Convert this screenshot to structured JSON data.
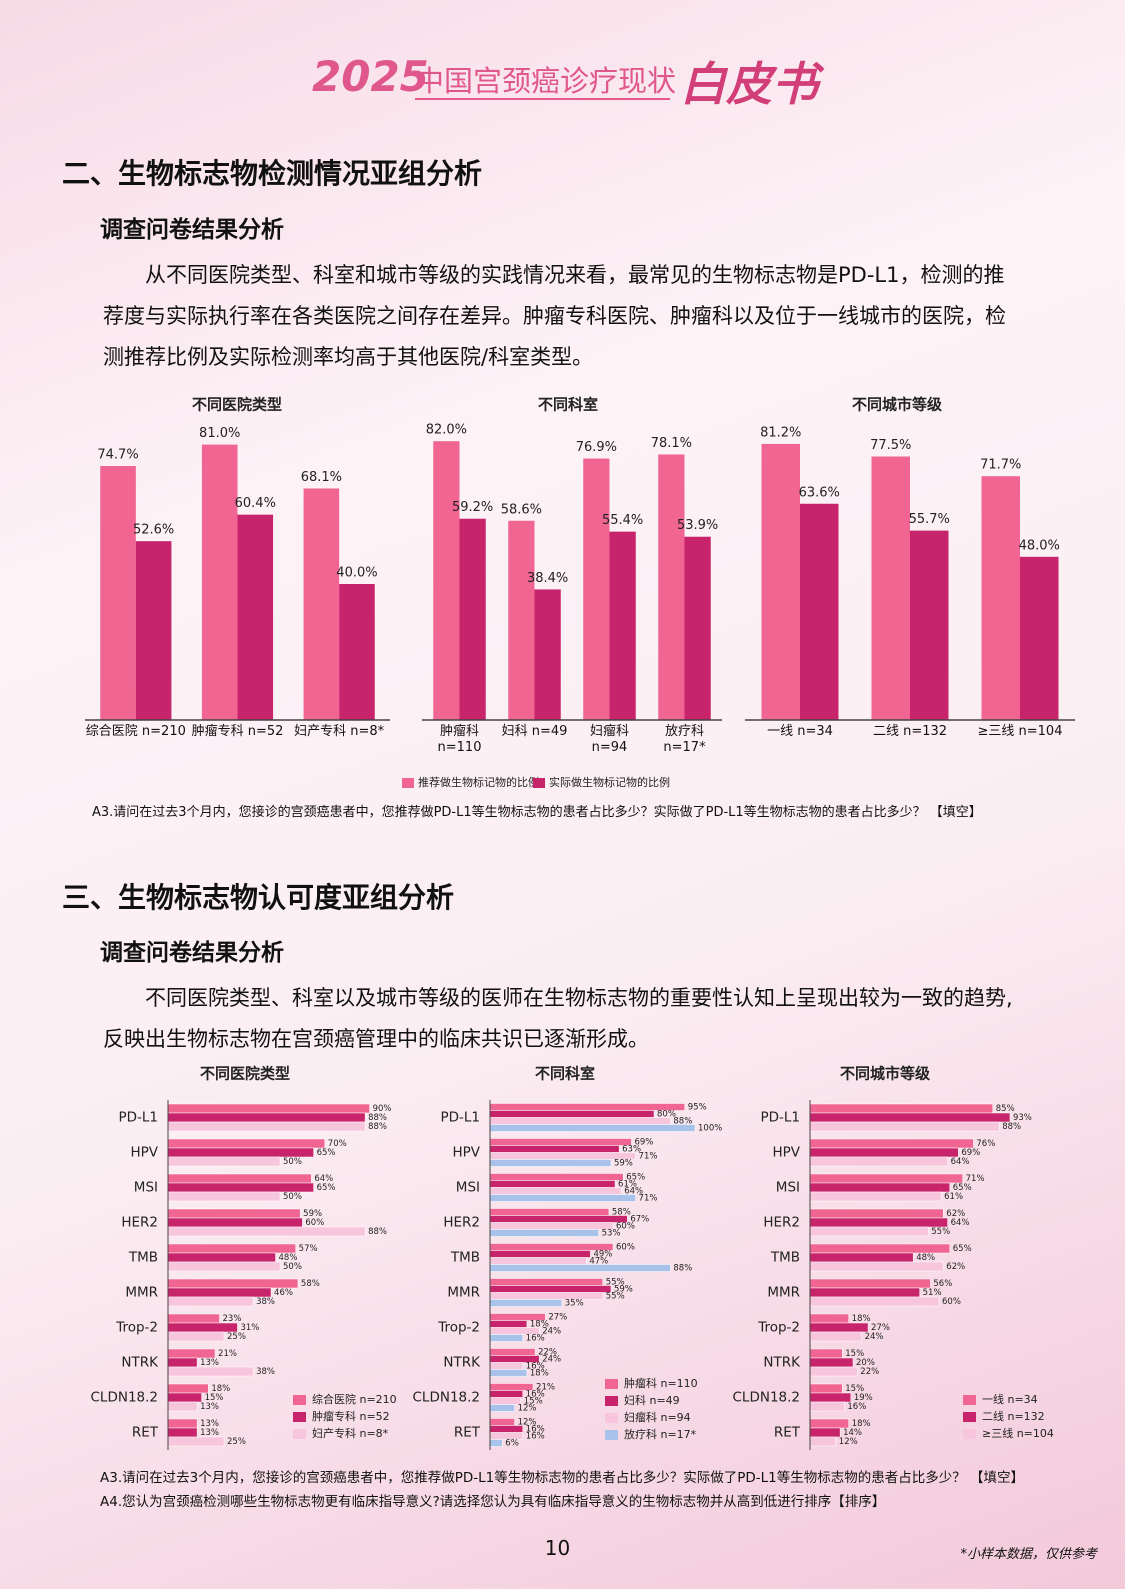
{
  "header": {
    "year": "2025",
    "title": "中国宫颈癌诊疗现状",
    "subtitle": "白皮书"
  },
  "sections": [
    {
      "title": "二、生物标志物检测情况亚组分析",
      "subtitle": "调查问卷结果分析",
      "paragraph": "从不同医院类型、科室和城市等级的实践情况来看，最常见的生物标志物是PD-L1，检测的推荐度与实际执行率在各类医院之间存在差异。肿瘤专科医院、肿瘤科以及位于一线城市的医院，检测推荐比例及实际检测率均高于其他医院/科室类型。",
      "note": "A3.请问在过去3个月内，您接诊的宫颈癌患者中，您推荐做PD-L1等生物标志物的患者占比多少？实际做了PD-L1等生物标志物的患者占比多少？ 【填空】"
    },
    {
      "title": "三、生物标志物认可度亚组分析",
      "subtitle": "调查问卷结果分析",
      "paragraph": "不同医院类型、科室以及城市等级的医师在生物标志物的重要性认知上呈现出较为一致的趋势,反映出生物标志物在宫颈癌管理中的临床共识已逐渐形成。",
      "notes": [
        "A3.请问在过去3个月内，您接诊的宫颈癌患者中，您推荐做PD-L1等生物标志物的患者占比多少？实际做了PD-L1等生物标志物的患者占比多少？ 【填空】",
        "A4.您认为宫颈癌检测哪些生物标志物更有临床指导意义?请选择您认为具有临床指导意义的生物标志物并从高到低进行排序【排序】"
      ]
    }
  ],
  "chart_data": [
    {
      "type": "bar",
      "title": "不同医院类型",
      "categories": [
        "综合医院 n=210",
        "肿瘤专科 n=52",
        "妇产专科 n=8*"
      ],
      "ylim": [
        0,
        90
      ],
      "series": [
        {
          "name": "推荐做生物标记物的比例",
          "color": "#f06592",
          "values": [
            74.7,
            81.0,
            68.1
          ],
          "value_labels": [
            "74.7%",
            "81.0%",
            "68.1%"
          ]
        },
        {
          "name": "实际做生物标记物的比例",
          "color": "#c8246c",
          "values": [
            52.6,
            60.4,
            40.0
          ],
          "value_labels": [
            "52.6%",
            "60.4%",
            "40.0%"
          ]
        }
      ]
    },
    {
      "type": "bar",
      "title": "不同科室",
      "categories": [
        "肿瘤科 n=110",
        "妇科 n=49",
        "妇瘤科 n=94",
        "放疗科 n=17*"
      ],
      "ylim": [
        0,
        90
      ],
      "series": [
        {
          "color": "#f06592",
          "values": [
            82.0,
            58.6,
            76.9,
            78.1
          ],
          "value_labels": [
            "82.0%",
            "58.6%",
            "76.9%",
            "78.1%"
          ]
        },
        {
          "color": "#c8246c",
          "values": [
            59.2,
            38.4,
            55.4,
            53.9
          ],
          "value_labels": [
            "59.2%",
            "38.4%",
            "55.4%",
            "53.9%"
          ]
        }
      ]
    },
    {
      "type": "bar",
      "title": "不同城市等级",
      "categories": [
        "一线 n=34",
        "二线 n=132",
        "≥三线 n=104"
      ],
      "ylim": [
        0,
        90
      ],
      "series": [
        {
          "color": "#f06592",
          "values": [
            81.2,
            77.5,
            71.7
          ],
          "value_labels": [
            "81.2%",
            "77.5%",
            "71.7%"
          ]
        },
        {
          "color": "#c8246c",
          "values": [
            63.6,
            55.7,
            48.0
          ],
          "value_labels": [
            "63.6%",
            "55.7%",
            "48.0%"
          ]
        }
      ]
    },
    {
      "type": "barh",
      "title": "不同医院类型",
      "categories": [
        "PD-L1",
        "HPV",
        "MSI",
        "HER2",
        "TMB",
        "MMR",
        "Trop-2",
        "NTRK",
        "CLDN18.2",
        "RET"
      ],
      "xlim": [
        0,
        100
      ],
      "series": [
        {
          "name": "综合医院 n=210",
          "color": "#f06592",
          "values": [
            90,
            70,
            64,
            59,
            57,
            58,
            23,
            21,
            18,
            13
          ],
          "value_labels": [
            "90%",
            "70%",
            "64%",
            "59%",
            "57%",
            "58%",
            "23%",
            "21%",
            "18%",
            "13%"
          ]
        },
        {
          "name": "肿瘤专科 n=52",
          "color": "#c8246c",
          "values": [
            88,
            65,
            65,
            60,
            48,
            46,
            31,
            13,
            15,
            13
          ],
          "value_labels": [
            "88%",
            "65%",
            "65%",
            "60%",
            "48%",
            "46%",
            "31%",
            "13%",
            "15%",
            "13%"
          ]
        },
        {
          "name": "妇产专科 n=8*",
          "color": "#f8c6dc",
          "values": [
            88,
            50,
            50,
            88,
            50,
            38,
            25,
            38,
            13,
            25
          ],
          "value_labels": [
            "88%",
            "50%",
            "50%",
            "88%",
            "50%",
            "38%",
            "25%",
            "38%",
            "13%",
            "25%"
          ]
        }
      ]
    },
    {
      "type": "barh",
      "title": "不同科室",
      "categories": [
        "PD-L1",
        "HPV",
        "MSI",
        "HER2",
        "TMB",
        "MMR",
        "Trop-2",
        "NTRK",
        "CLDN18.2",
        "RET"
      ],
      "xlim": [
        0,
        100
      ],
      "series": [
        {
          "name": "肿瘤科 n=110",
          "color": "#f06592",
          "values": [
            95,
            69,
            65,
            58,
            60,
            55,
            27,
            22,
            21,
            12
          ],
          "value_labels": [
            "95%",
            "69%",
            "65%",
            "58%",
            "60%",
            "55%",
            "27%",
            "22%",
            "21%",
            "12%"
          ]
        },
        {
          "name": "妇科 n=49",
          "color": "#c8246c",
          "values": [
            80,
            63,
            61,
            67,
            49,
            59,
            18,
            24,
            16,
            16
          ],
          "value_labels": [
            "80%",
            "63%",
            "61%",
            "67%",
            "49%",
            "59%",
            "18%",
            "24%",
            "16%",
            "16%"
          ]
        },
        {
          "name": "妇瘤科 n=94",
          "color": "#f8c6dc",
          "values": [
            88,
            71,
            64,
            60,
            47,
            55,
            24,
            16,
            15,
            16
          ],
          "value_labels": [
            "88%",
            "71%",
            "64%",
            "60%",
            "47%",
            "55%",
            "24%",
            "16%",
            "15%",
            "16%"
          ]
        },
        {
          "name": "放疗科 n=17*",
          "color": "#a9c2ea",
          "values": [
            100,
            59,
            71,
            53,
            88,
            35,
            16,
            18,
            12,
            6
          ],
          "value_labels": [
            "100%",
            "59%",
            "71%",
            "53%",
            "88%",
            "35%",
            "16%",
            "18%",
            "12%",
            "6%"
          ]
        }
      ]
    },
    {
      "type": "barh",
      "title": "不同城市等级",
      "categories": [
        "PD-L1",
        "HPV",
        "MSI",
        "HER2",
        "TMB",
        "MMR",
        "Trop-2",
        "NTRK",
        "CLDN18.2",
        "RET"
      ],
      "xlim": [
        0,
        100
      ],
      "series": [
        {
          "name": "一线 n=34",
          "color": "#f06592",
          "values": [
            85,
            76,
            71,
            62,
            65,
            56,
            18,
            15,
            15,
            18
          ],
          "value_labels": [
            "85%",
            "76%",
            "71%",
            "62%",
            "65%",
            "56%",
            "18%",
            "15%",
            "15%",
            "18%"
          ]
        },
        {
          "name": "二线 n=132",
          "color": "#c8246c",
          "values": [
            93,
            69,
            65,
            64,
            48,
            51,
            27,
            20,
            19,
            14
          ],
          "value_labels": [
            "93%",
            "69%",
            "65%",
            "64%",
            "48%",
            "51%",
            "27%",
            "20%",
            "19%",
            "14%"
          ]
        },
        {
          "name": "≥三线 n=104",
          "color": "#f8c6dc",
          "values": [
            88,
            64,
            61,
            55,
            62,
            60,
            24,
            22,
            16,
            12
          ],
          "value_labels": [
            "88%",
            "64%",
            "61%",
            "55%",
            "62%",
            "60%",
            "24%",
            "22%",
            "16%",
            "12%"
          ]
        }
      ]
    }
  ],
  "footer": {
    "page": "10",
    "note": "*小样本数据，仅供参考"
  }
}
